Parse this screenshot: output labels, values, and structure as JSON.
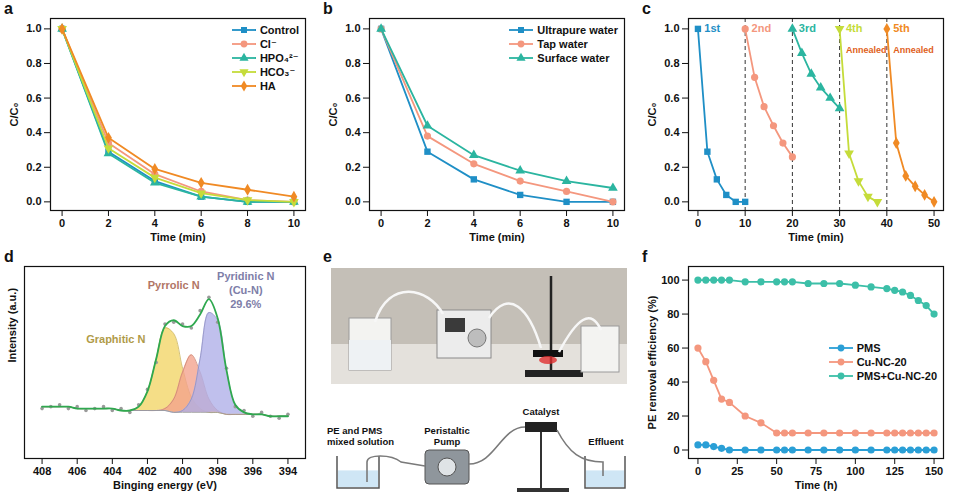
{
  "chart_data": [
    {
      "panel": "a",
      "type": "line",
      "x_label": "Time (min)",
      "y_label": "C/C₀",
      "x": [
        0,
        2,
        4,
        6,
        8,
        10
      ],
      "xlim": [
        -0.5,
        10.5
      ],
      "xticks": [
        0,
        2,
        4,
        6,
        8,
        10
      ],
      "ylim": [
        -0.05,
        1.06
      ],
      "yticks": [
        {
          "value": 0,
          "label": "0.0"
        },
        0.2,
        0.4,
        0.6,
        0.8,
        {
          "value": 1,
          "label": "1.0"
        }
      ],
      "legend": "top-right",
      "series": [
        {
          "name": "Control",
          "color": "#1f8fc6",
          "marker": "square",
          "values": [
            1,
            0.29,
            0.12,
            0.03,
            0,
            0
          ]
        },
        {
          "name": "Cl⁻",
          "color": "#f4977e",
          "marker": "circle",
          "values": [
            1,
            0.34,
            0.16,
            0.06,
            0.01,
            0
          ]
        },
        {
          "name": "HPO₄²⁻",
          "color": "#2bb5a0",
          "marker": "triangle",
          "values": [
            1,
            0.28,
            0.11,
            0.03,
            0,
            0
          ]
        },
        {
          "name": "HCO₃⁻",
          "color": "#c5dc3a",
          "marker": "triangle-down",
          "values": [
            1,
            0.31,
            0.14,
            0.05,
            0.01,
            0
          ]
        },
        {
          "name": "HA",
          "color": "#f08a24",
          "marker": "diamond",
          "values": [
            1,
            0.37,
            0.19,
            0.11,
            0.07,
            0.03
          ]
        }
      ]
    },
    {
      "panel": "b",
      "type": "line",
      "x_label": "Time (min)",
      "y_label": "C/C₀",
      "x": [
        0,
        2,
        4,
        6,
        8,
        10
      ],
      "xlim": [
        -0.5,
        10.5
      ],
      "xticks": [
        0,
        2,
        4,
        6,
        8,
        10
      ],
      "ylim": [
        -0.05,
        1.06
      ],
      "yticks": [
        {
          "value": 0,
          "label": "0.0"
        },
        0.2,
        0.4,
        0.6,
        0.8,
        {
          "value": 1,
          "label": "1.0"
        }
      ],
      "legend": "top-right",
      "series": [
        {
          "name": "Ultrapure water",
          "color": "#1f8fc6",
          "marker": "square",
          "values": [
            1,
            0.29,
            0.13,
            0.04,
            0,
            0
          ]
        },
        {
          "name": "Tap water",
          "color": "#f4977e",
          "marker": "circle",
          "values": [
            1,
            0.38,
            0.22,
            0.12,
            0.06,
            0
          ]
        },
        {
          "name": "Surface water",
          "color": "#2bb5a0",
          "marker": "triangle",
          "values": [
            1,
            0.44,
            0.27,
            0.18,
            0.12,
            0.08
          ]
        }
      ]
    },
    {
      "panel": "c",
      "type": "line",
      "x_label": "Time (min)",
      "y_label": "C/C₀",
      "xlim": [
        -2,
        52
      ],
      "xticks": [
        0,
        10,
        20,
        30,
        40,
        50
      ],
      "ylim": [
        -0.05,
        1.06
      ],
      "yticks": [
        {
          "value": 0,
          "label": "0.0"
        },
        0.2,
        0.4,
        0.6,
        0.8,
        {
          "value": 1,
          "label": "1.0"
        }
      ],
      "separators": [
        10,
        20,
        30,
        40
      ],
      "series": [
        {
          "name": "1st",
          "color": "#1f8fc6",
          "marker": "square",
          "x": [
            0,
            2,
            4,
            6,
            8,
            10
          ],
          "values": [
            1,
            0.29,
            0.13,
            0.04,
            0,
            0
          ]
        },
        {
          "name": "2nd",
          "color": "#f4977e",
          "marker": "circle",
          "x": [
            10,
            12,
            14,
            16,
            18,
            20
          ],
          "values": [
            1,
            0.72,
            0.55,
            0.44,
            0.34,
            0.26
          ]
        },
        {
          "name": "3rd",
          "color": "#2bb5a0",
          "marker": "triangle",
          "x": [
            20,
            22,
            24,
            26,
            28,
            30
          ],
          "values": [
            1,
            0.86,
            0.74,
            0.66,
            0.6,
            0.54
          ]
        },
        {
          "name": "4th",
          "color": "#c5dc3a",
          "marker": "triangle-down",
          "x": [
            30,
            32,
            34,
            36,
            38
          ],
          "values": [
            1,
            0.28,
            0.12,
            0.03,
            0
          ],
          "annotation": "Annealed"
        },
        {
          "name": "5th",
          "color": "#f08a24",
          "marker": "diamond",
          "x": [
            40,
            42,
            44,
            46,
            48,
            50
          ],
          "values": [
            1,
            0.34,
            0.15,
            0.09,
            0.04,
            0
          ],
          "annotation": "Annealed"
        }
      ]
    },
    {
      "panel": "d",
      "type": "spectrum",
      "x_label": "Binging energy (eV)",
      "y_label": "Intensity (a.u.)",
      "tick_labels": "x",
      "x": [
        394,
        394.5,
        395,
        395.5,
        396,
        396.5,
        397,
        397.5,
        398,
        398.5,
        399,
        399.5,
        400,
        400.5,
        401,
        401.5,
        402,
        402.5,
        403,
        403.5,
        404,
        404.5,
        405,
        405.5,
        406,
        406.5,
        407,
        407.5,
        408
      ],
      "xlim": [
        409,
        393
      ],
      "xticks": [
        408,
        406,
        404,
        402,
        400,
        398,
        396,
        394
      ],
      "ylim": [
        0,
        1
      ],
      "baseline": [
        0.22,
        0.22,
        0.22,
        0.23,
        0.23,
        0.23,
        0.23,
        0.23,
        0.24,
        0.24,
        0.24,
        0.24,
        0.24,
        0.24,
        0.25,
        0.25,
        0.25,
        0.25,
        0.25,
        0.25,
        0.26,
        0.26,
        0.26,
        0.26,
        0.26,
        0.27,
        0.27,
        0.27,
        0.27
      ],
      "fit": [
        0.22,
        0.22,
        0.22,
        0.23,
        0.23,
        0.24,
        0.28,
        0.46,
        0.73,
        0.83,
        0.75,
        0.69,
        0.69,
        0.72,
        0.69,
        0.52,
        0.35,
        0.27,
        0.25,
        0.25,
        0.26,
        0.26,
        0.26,
        0.26,
        0.26,
        0.27,
        0.27,
        0.27,
        0.27
      ],
      "raw": [
        0.23,
        0.21,
        0.22,
        0.24,
        0.22,
        0.25,
        0.27,
        0.47,
        0.71,
        0.84,
        0.77,
        0.68,
        0.7,
        0.71,
        0.7,
        0.5,
        0.36,
        0.28,
        0.24,
        0.26,
        0.25,
        0.27,
        0.26,
        0.25,
        0.27,
        0.26,
        0.28,
        0.27,
        0.26
      ],
      "series": [
        {
          "name": "Graphitic N",
          "color": "#f2d565",
          "values": [
            0,
            0,
            0,
            0,
            0,
            0,
            0,
            0,
            0,
            0,
            0.02,
            0.08,
            0.23,
            0.41,
            0.43,
            0.27,
            0.1,
            0.02,
            0,
            0,
            0,
            0,
            0,
            0,
            0,
            0,
            0,
            0,
            0
          ]
        },
        {
          "name": "Pyrrolic N",
          "color": "#f4a28c",
          "values": [
            0,
            0,
            0,
            0,
            0,
            0,
            0,
            0,
            0.01,
            0.07,
            0.21,
            0.3,
            0.21,
            0.07,
            0.01,
            0,
            0,
            0,
            0,
            0,
            0,
            0,
            0,
            0,
            0,
            0,
            0,
            0,
            0
          ]
        },
        {
          "name": "Pyridinic N (Cu-N)",
          "color": "#aeaee8",
          "values": [
            0,
            0,
            0,
            0,
            0,
            0.01,
            0.05,
            0.23,
            0.48,
            0.52,
            0.28,
            0.07,
            0.01,
            0,
            0,
            0,
            0,
            0,
            0,
            0,
            0,
            0,
            0,
            0,
            0,
            0,
            0,
            0,
            0
          ],
          "share": {
            "value": 29.6,
            "label": "29.6%"
          }
        }
      ]
    },
    {
      "panel": "f",
      "type": "line",
      "x_label": "Time (h)",
      "y_label": "PE removal efficiency (%)",
      "x": [
        0,
        5,
        10,
        15,
        20,
        30,
        40,
        50,
        55,
        60,
        70,
        80,
        90,
        100,
        110,
        120,
        125,
        130,
        135,
        140,
        145,
        150
      ],
      "xlim": [
        -6,
        156
      ],
      "xticks": [
        0,
        25,
        50,
        75,
        100,
        125,
        150
      ],
      "ylim": [
        -5,
        108
      ],
      "yticks": [
        0,
        20,
        40,
        60,
        80,
        100
      ],
      "legend": "right",
      "series": [
        {
          "name": "PMS",
          "color": "#2a9fd6",
          "marker": "circle",
          "values": [
            3,
            3,
            2,
            1,
            0,
            0,
            0,
            0,
            0,
            0,
            0,
            0,
            0,
            0,
            0,
            0,
            0,
            0,
            0,
            0,
            0,
            0
          ]
        },
        {
          "name": "Cu-NC-20",
          "color": "#f4977e",
          "marker": "circle",
          "values": [
            60,
            52,
            41,
            30,
            28,
            20,
            16,
            10,
            10,
            10,
            10,
            10,
            10,
            10,
            10,
            10,
            10,
            10,
            10,
            10,
            10,
            10
          ]
        },
        {
          "name": "PMS+Cu-NC-20",
          "color": "#3cbfa8",
          "marker": "circle",
          "values": [
            100,
            100,
            100,
            100,
            100,
            99,
            99,
            99,
            99,
            99,
            98,
            98,
            98,
            97,
            96,
            95,
            94,
            93,
            91,
            88,
            85,
            80
          ]
        }
      ]
    }
  ],
  "diagram": {
    "panel": "e",
    "type": "diagram",
    "labels": {
      "source": "PE and PMS mixed solution",
      "pump": "Peristaltic Pump",
      "catalyst": "Catalyst",
      "effluent": "Effluent"
    }
  }
}
